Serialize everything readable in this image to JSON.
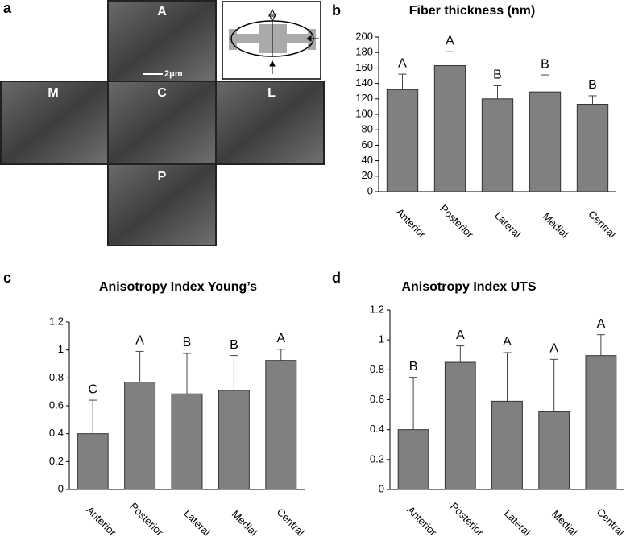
{
  "panel_labels": [
    "a",
    "b",
    "c",
    "d"
  ],
  "micrograph": {
    "labels": [
      "A",
      "M",
      "C",
      "L",
      "P"
    ],
    "scale_bar": "2μm"
  },
  "chart_data": [
    {
      "type": "bar",
      "title": "Fiber thickness (nm)",
      "categories": [
        "Anterior",
        "Posterior",
        "Lateral",
        "Medial",
        "Central"
      ],
      "values": [
        132,
        163,
        120,
        129,
        113
      ],
      "errors": [
        20,
        18,
        17,
        22,
        11
      ],
      "letters": [
        "A",
        "A",
        "B",
        "B",
        "B"
      ],
      "color": "#808080",
      "ylim": [
        0,
        200
      ],
      "yticks": [
        0,
        20,
        40,
        60,
        80,
        100,
        120,
        140,
        160,
        180,
        200
      ]
    },
    {
      "type": "bar",
      "title": "Anisotropy Index Young’s",
      "categories": [
        "Anterior",
        "Posterior",
        "Lateral",
        "Medial",
        "Central"
      ],
      "values": [
        0.4,
        0.77,
        0.685,
        0.71,
        0.925
      ],
      "errors": [
        0.24,
        0.22,
        0.29,
        0.25,
        0.08
      ],
      "letters": [
        "C",
        "A",
        "B",
        "B",
        "A"
      ],
      "color": "#808080",
      "ylim": [
        0,
        1.2
      ],
      "yticks": [
        0,
        0.2,
        0.4,
        0.6,
        0.8,
        1,
        1.2
      ]
    },
    {
      "type": "bar",
      "title": "Anisotropy Index UTS",
      "categories": [
        "Anterior",
        "Posterior",
        "Lateral",
        "Medial",
        "Central"
      ],
      "values": [
        0.4,
        0.85,
        0.59,
        0.52,
        0.895
      ],
      "errors": [
        0.35,
        0.11,
        0.325,
        0.35,
        0.14
      ],
      "letters": [
        "B",
        "A",
        "A",
        "A",
        "A"
      ],
      "color": "#808080",
      "ylim": [
        0,
        1.2
      ],
      "yticks": [
        0,
        0.2,
        0.4,
        0.6,
        0.8,
        1,
        1.2
      ]
    }
  ]
}
